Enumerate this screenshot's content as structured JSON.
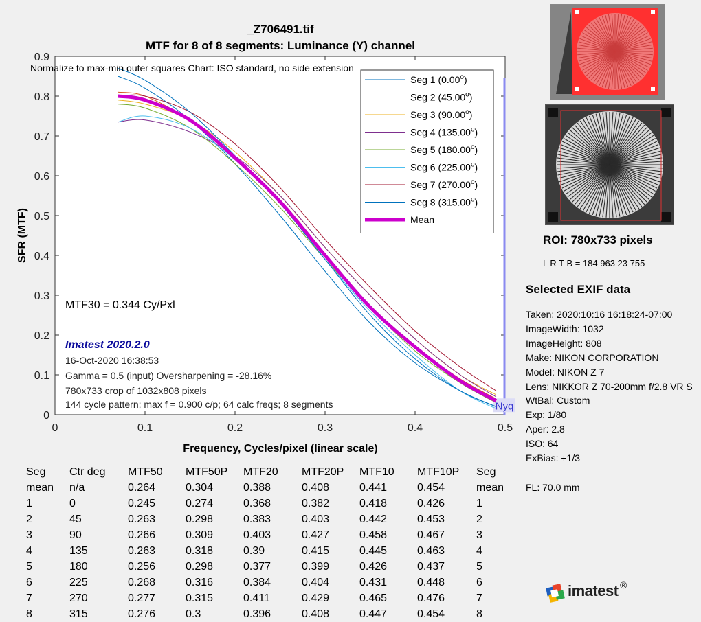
{
  "chart_data": {
    "type": "line",
    "title": "_Z706491.tif",
    "subtitle": "MTF for 8 of 8 segments:  Luminance (Y) channel",
    "xlabel": "Frequency, Cycles/pixel (linear scale)",
    "ylabel": "SFR (MTF)",
    "xlim": [
      0,
      0.5
    ],
    "ylim": [
      0,
      0.9
    ],
    "xticks": [
      "0",
      "0.1",
      "0.2",
      "0.3",
      "0.4",
      "0.5"
    ],
    "yticks": [
      "0",
      "0.1",
      "0.2",
      "0.3",
      "0.4",
      "0.5",
      "0.6",
      "0.7",
      "0.8",
      "0.9"
    ],
    "grid": false,
    "legend_position": "top-right",
    "nyquist_label": "Nyq",
    "nyquist_x": 0.5,
    "series": [
      {
        "name": "Seg 1 (0.00",
        "name_sup": "o",
        "name_end": ")",
        "color": "#0072BD",
        "width": 1,
        "points": [
          [
            0.07,
            0.85
          ],
          [
            0.1,
            0.82
          ],
          [
            0.15,
            0.74
          ],
          [
            0.2,
            0.63
          ],
          [
            0.25,
            0.5
          ],
          [
            0.3,
            0.36
          ],
          [
            0.35,
            0.23
          ],
          [
            0.4,
            0.13
          ],
          [
            0.45,
            0.06
          ],
          [
            0.49,
            0.02
          ]
        ]
      },
      {
        "name": "Seg 2 (45.00",
        "name_sup": "o",
        "name_end": ")",
        "color": "#D95319",
        "width": 1,
        "points": [
          [
            0.07,
            0.81
          ],
          [
            0.1,
            0.8
          ],
          [
            0.15,
            0.74
          ],
          [
            0.2,
            0.65
          ],
          [
            0.25,
            0.53
          ],
          [
            0.3,
            0.4
          ],
          [
            0.35,
            0.27
          ],
          [
            0.4,
            0.17
          ],
          [
            0.45,
            0.09
          ],
          [
            0.49,
            0.04
          ]
        ]
      },
      {
        "name": "Seg 3 (90.00",
        "name_sup": "o",
        "name_end": ")",
        "color": "#EDB120",
        "width": 1,
        "points": [
          [
            0.07,
            0.79
          ],
          [
            0.1,
            0.78
          ],
          [
            0.15,
            0.74
          ],
          [
            0.2,
            0.66
          ],
          [
            0.25,
            0.55
          ],
          [
            0.3,
            0.42
          ],
          [
            0.35,
            0.3
          ],
          [
            0.4,
            0.19
          ],
          [
            0.45,
            0.1
          ],
          [
            0.49,
            0.05
          ]
        ]
      },
      {
        "name": "Seg 4 (135.00",
        "name_sup": "o",
        "name_end": ")",
        "color": "#7E2F8E",
        "width": 1,
        "points": [
          [
            0.07,
            0.735
          ],
          [
            0.1,
            0.74
          ],
          [
            0.15,
            0.71
          ],
          [
            0.2,
            0.65
          ],
          [
            0.25,
            0.55
          ],
          [
            0.3,
            0.42
          ],
          [
            0.35,
            0.3
          ],
          [
            0.4,
            0.19
          ],
          [
            0.45,
            0.1
          ],
          [
            0.49,
            0.045
          ]
        ]
      },
      {
        "name": "Seg 5 (180.00",
        "name_sup": "o",
        "name_end": ")",
        "color": "#77AC30",
        "width": 1,
        "points": [
          [
            0.07,
            0.78
          ],
          [
            0.1,
            0.77
          ],
          [
            0.15,
            0.72
          ],
          [
            0.2,
            0.63
          ],
          [
            0.25,
            0.52
          ],
          [
            0.3,
            0.39
          ],
          [
            0.35,
            0.27
          ],
          [
            0.4,
            0.16
          ],
          [
            0.45,
            0.08
          ],
          [
            0.49,
            0.03
          ]
        ]
      },
      {
        "name": "Seg 6 (225.00",
        "name_sup": "o",
        "name_end": ")",
        "color": "#4DBEEE",
        "width": 1,
        "points": [
          [
            0.07,
            0.735
          ],
          [
            0.1,
            0.75
          ],
          [
            0.15,
            0.72
          ],
          [
            0.2,
            0.64
          ],
          [
            0.25,
            0.53
          ],
          [
            0.3,
            0.39
          ],
          [
            0.35,
            0.26
          ],
          [
            0.4,
            0.15
          ],
          [
            0.45,
            0.06
          ],
          [
            0.49,
            0.015
          ]
        ]
      },
      {
        "name": "Seg 7 (270.00",
        "name_sup": "o",
        "name_end": ")",
        "color": "#A2142F",
        "width": 1,
        "points": [
          [
            0.07,
            0.8
          ],
          [
            0.1,
            0.8
          ],
          [
            0.15,
            0.76
          ],
          [
            0.2,
            0.68
          ],
          [
            0.25,
            0.57
          ],
          [
            0.3,
            0.44
          ],
          [
            0.35,
            0.32
          ],
          [
            0.4,
            0.21
          ],
          [
            0.45,
            0.12
          ],
          [
            0.49,
            0.06
          ]
        ]
      },
      {
        "name": "Seg 8 (315.00",
        "name_sup": "o",
        "name_end": ")",
        "color": "#0072BD",
        "width": 1,
        "points": [
          [
            0.07,
            0.87
          ],
          [
            0.1,
            0.84
          ],
          [
            0.15,
            0.76
          ],
          [
            0.2,
            0.65
          ],
          [
            0.25,
            0.53
          ],
          [
            0.3,
            0.39
          ],
          [
            0.35,
            0.25
          ],
          [
            0.4,
            0.14
          ],
          [
            0.45,
            0.06
          ],
          [
            0.49,
            0.02
          ]
        ]
      },
      {
        "name": "Mean",
        "name_sup": "",
        "name_end": "",
        "color": "#CC00CC",
        "width": 5,
        "points": [
          [
            0.07,
            0.8
          ],
          [
            0.1,
            0.79
          ],
          [
            0.15,
            0.74
          ],
          [
            0.2,
            0.645
          ],
          [
            0.25,
            0.535
          ],
          [
            0.3,
            0.4
          ],
          [
            0.35,
            0.27
          ],
          [
            0.4,
            0.17
          ],
          [
            0.45,
            0.085
          ],
          [
            0.49,
            0.035
          ]
        ]
      }
    ]
  },
  "annotations": {
    "normalize": "Normalize to max-min outer squares    Chart: ISO standard, no side extension",
    "mtf30": "MTF30 = 0.344 Cy/Pxl",
    "version": "Imatest 2020.2.0",
    "date": "16-Oct-2020 16:38:53",
    "gamma": "Gamma = 0.5 (input)  Oversharpening = -28.16%",
    "crop": "780x733 crop of 1032x808 pixels",
    "pattern": "144 cycle pattern; max f = 0.900 c/p;  64 calc freqs;  8 segments"
  },
  "roi": {
    "title": "ROI:  780x733 pixels",
    "lrtb": "L R  T B = 184 963  23 755"
  },
  "exif": {
    "title": "Selected EXIF data",
    "items": [
      "Taken: 2020:10:16 16:18:24-07:00",
      "ImageWidth:  1032",
      "ImageHeight:  808",
      "Make:  NIKON CORPORATION",
      "Model: NIKON Z 7",
      "Lens:  NIKKOR Z 70-200mm f/2.8 VR S",
      "WtBal:  Custom",
      "Exp:   1/80",
      "Aper:  2.8",
      "ISO:   64",
      "ExBias:  +1/3"
    ],
    "fl": "FL:  70.0 mm"
  },
  "table": {
    "headers": [
      "Seg",
      "Ctr deg",
      "MTF50",
      "MTF50P",
      "MTF20",
      "MTF20P",
      "MTF10",
      "MTF10P",
      "Seg"
    ],
    "rows": [
      [
        "mean",
        "n/a",
        "0.264",
        "0.304",
        "0.388",
        "0.408",
        "0.441",
        "0.454",
        "mean"
      ],
      [
        "1",
        "0",
        "0.245",
        "0.274",
        "0.368",
        "0.382",
        "0.418",
        "0.426",
        "1"
      ],
      [
        "2",
        "45",
        "0.263",
        "0.298",
        "0.383",
        "0.403",
        "0.442",
        "0.453",
        "2"
      ],
      [
        "3",
        "90",
        "0.266",
        "0.309",
        "0.403",
        "0.427",
        "0.458",
        "0.467",
        "3"
      ],
      [
        "4",
        "135",
        "0.263",
        "0.318",
        "0.39",
        "0.415",
        "0.445",
        "0.463",
        "4"
      ],
      [
        "5",
        "180",
        "0.256",
        "0.298",
        "0.377",
        "0.399",
        "0.426",
        "0.437",
        "5"
      ],
      [
        "6",
        "225",
        "0.268",
        "0.316",
        "0.384",
        "0.404",
        "0.431",
        "0.448",
        "6"
      ],
      [
        "7",
        "270",
        "0.277",
        "0.315",
        "0.411",
        "0.429",
        "0.465",
        "0.476",
        "7"
      ],
      [
        "8",
        "315",
        "0.276",
        "0.3",
        "0.396",
        "0.408",
        "0.447",
        "0.454",
        "8"
      ]
    ]
  },
  "logo": {
    "text": "imatest",
    "reg": "®"
  }
}
